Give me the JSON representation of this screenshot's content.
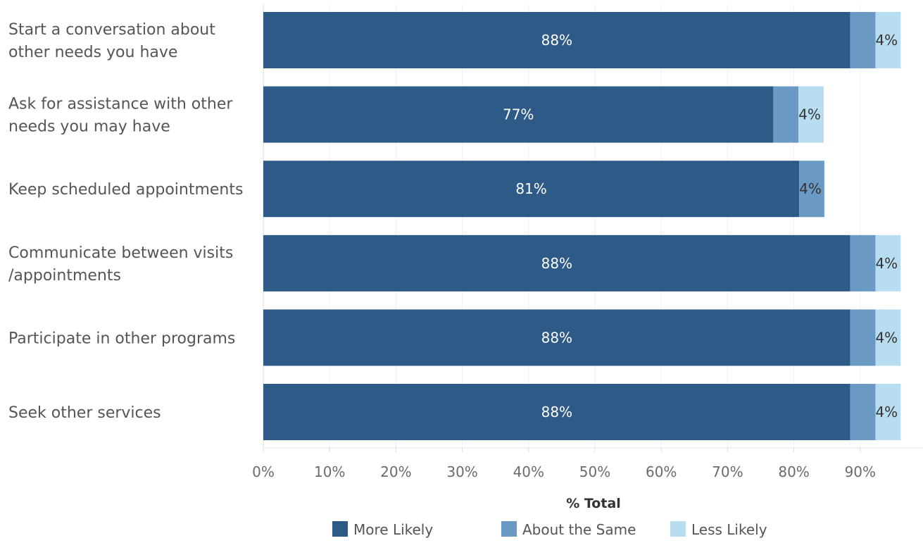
{
  "chart_data": {
    "type": "bar",
    "orientation": "horizontal",
    "stacked": true,
    "categories": [
      [
        "Start a conversation about",
        "other needs you have"
      ],
      [
        "Ask for assistance with other",
        "needs you may have"
      ],
      [
        "Keep scheduled appointments"
      ],
      [
        "Communicate between visits",
        "/appointments"
      ],
      [
        "Participate in other programs"
      ],
      [
        "Seek other services"
      ]
    ],
    "series": [
      {
        "name": "More Likely",
        "color": "#2e5a87",
        "values": [
          88.5,
          76.9,
          80.8,
          88.5,
          88.5,
          88.5
        ],
        "labels": [
          "88%",
          "77%",
          "81%",
          "88%",
          "88%",
          "88%"
        ]
      },
      {
        "name": "About the Same",
        "color": "#6a9ac4",
        "values": [
          3.8,
          3.8,
          3.8,
          3.8,
          3.8,
          3.8
        ]
      },
      {
        "name": "Less Likely",
        "color": "#b9ddf0",
        "values": [
          3.8,
          3.8,
          0,
          3.8,
          3.8,
          3.8
        ]
      }
    ],
    "end_labels": [
      "4%",
      "4%",
      "4%",
      "4%",
      "4%",
      "4%"
    ],
    "xlabel": "% Total",
    "xlim": [
      0,
      100
    ],
    "xticks": [
      0,
      10,
      20,
      30,
      40,
      50,
      60,
      70,
      80,
      90
    ],
    "xtick_labels": [
      "0%",
      "10%",
      "20%",
      "30%",
      "40%",
      "50%",
      "60%",
      "70%",
      "80%",
      "90%"
    ],
    "grid": true,
    "legend_position": "bottom"
  }
}
